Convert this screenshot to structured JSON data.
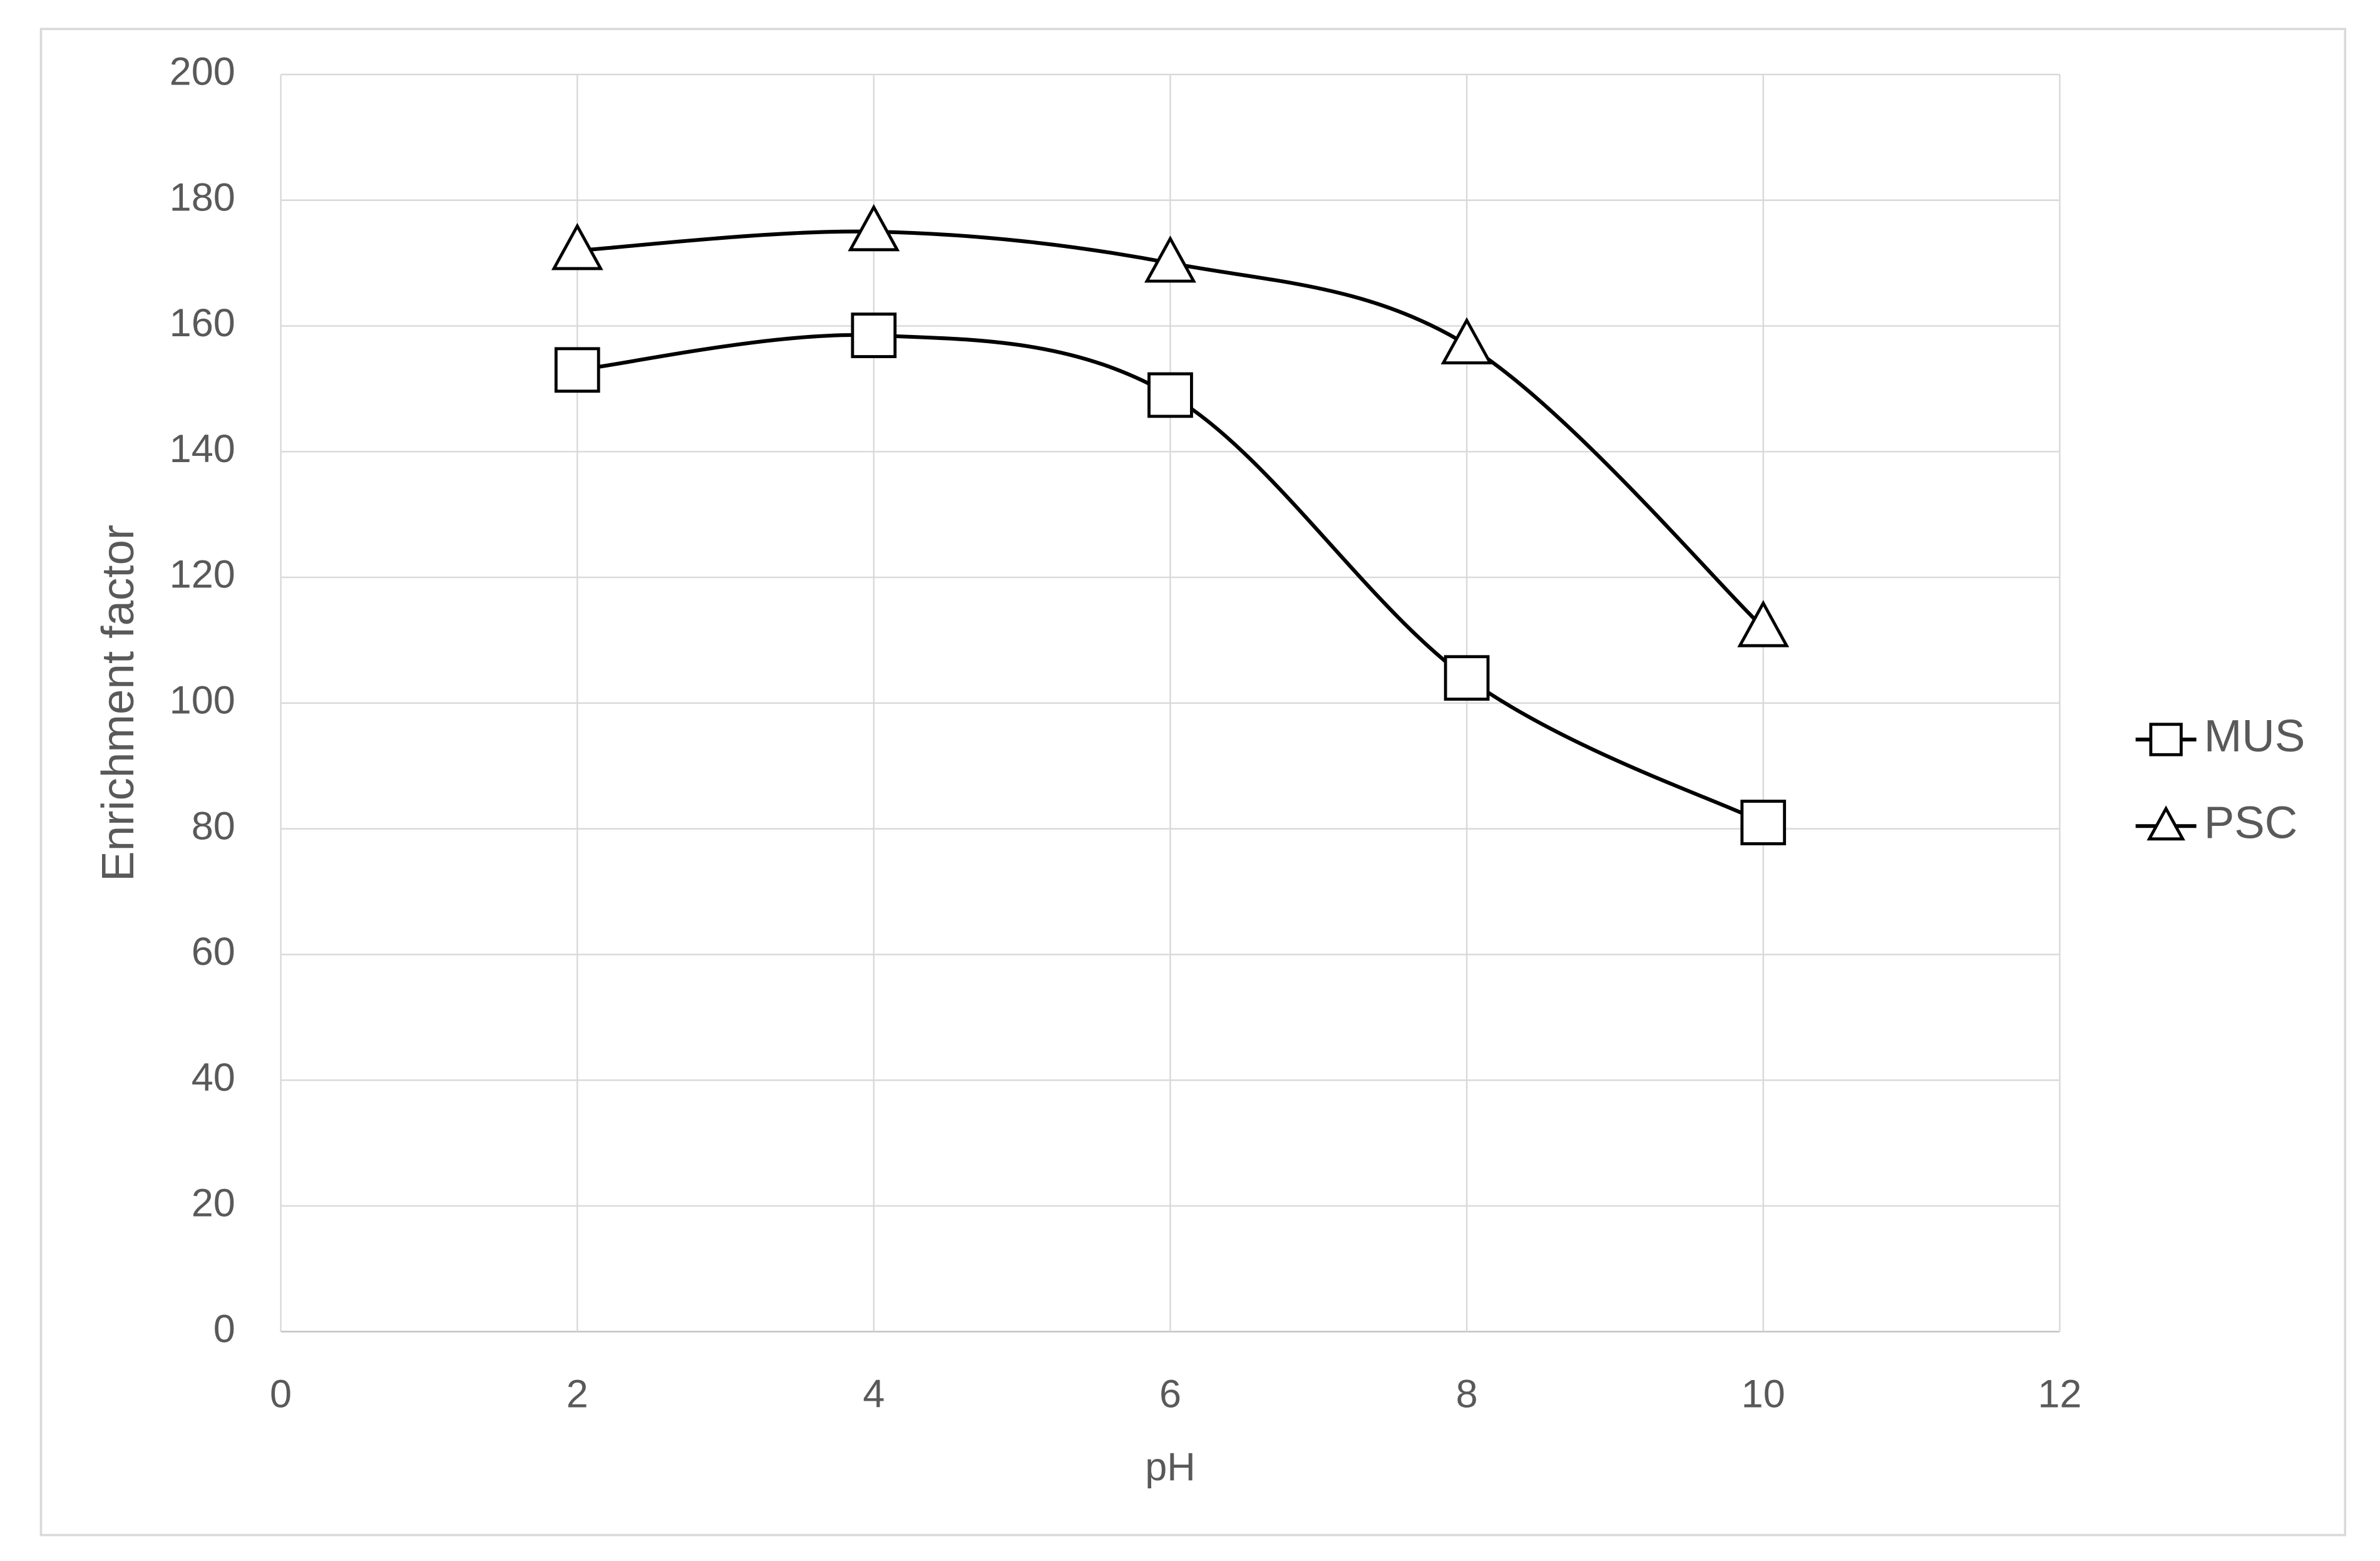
{
  "chart_data": {
    "type": "line",
    "smooth": true,
    "grid": true,
    "x_label": "pH",
    "y_label": "Enrichment factor",
    "x": [
      2,
      4,
      6,
      8,
      10
    ],
    "series": [
      {
        "name": "MUS",
        "color": "#000000",
        "marker": "square",
        "values": [
          153,
          158.5,
          149,
          104,
          81
        ]
      },
      {
        "name": "PSC",
        "color": "#000000",
        "marker": "triangle",
        "values": [
          172,
          175,
          170,
          157,
          112
        ]
      }
    ],
    "xlim": [
      0,
      12
    ],
    "xticks": [
      0,
      2,
      4,
      6,
      8,
      10,
      12
    ],
    "ylim": [
      0,
      200
    ],
    "yticks": [
      0,
      20,
      40,
      60,
      80,
      100,
      120,
      140,
      160,
      180,
      200
    ],
    "legend": "right"
  }
}
